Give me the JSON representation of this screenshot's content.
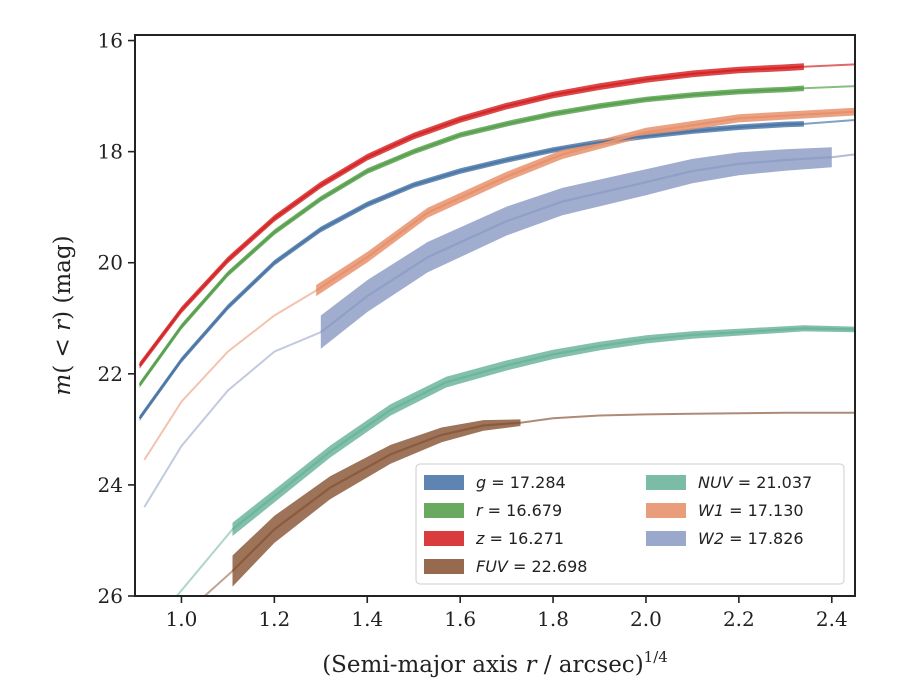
{
  "chart_data": {
    "type": "line",
    "xlabel": "(Semi-major axis r / arcsec)^(1/4)",
    "xlabel_parts": {
      "prefix": "(Semi-major axis ",
      "var": "r",
      "mid": " / arcsec)",
      "sup": "1/4"
    },
    "ylabel": "m(<r) (mag)",
    "ylabel_parts": {
      "var": "m",
      "open": "(",
      "lt": " < ",
      "var2": "r",
      "close": ")",
      "unit": " (mag)"
    },
    "xlim": [
      0.9,
      2.45
    ],
    "ylim": [
      26,
      15.9
    ],
    "y_inverted": true,
    "xticks": [
      1.0,
      1.2,
      1.4,
      1.6,
      1.8,
      2.0,
      2.2,
      2.4
    ],
    "xtick_labels": [
      "1.0",
      "1.2",
      "1.4",
      "1.6",
      "1.8",
      "2.0",
      "2.2",
      "2.4"
    ],
    "yticks": [
      16,
      18,
      20,
      22,
      24,
      26
    ],
    "ytick_labels": [
      "16",
      "18",
      "20",
      "22",
      "24",
      "26"
    ],
    "grid": false,
    "legend_position": "lower-right",
    "series": [
      {
        "name": "g = 17.284",
        "legend_var": "g",
        "legend_value": "17.284",
        "color": "#4c78a8",
        "x": [
          0.91,
          1.0,
          1.1,
          1.2,
          1.3,
          1.4,
          1.5,
          1.6,
          1.7,
          1.8,
          1.9,
          2.0,
          2.1,
          2.2,
          2.3,
          2.34
        ],
        "y": [
          22.8,
          21.75,
          20.8,
          20.0,
          19.4,
          18.95,
          18.6,
          18.35,
          18.15,
          17.97,
          17.83,
          17.72,
          17.63,
          17.56,
          17.51,
          17.5
        ],
        "x_ext": [
          2.34,
          2.45
        ],
        "y_ext": [
          17.5,
          17.43
        ],
        "band": [
          0.05,
          0.05
        ]
      },
      {
        "name": "r = 16.679",
        "legend_var": "r",
        "legend_value": "16.679",
        "color": "#59a14f",
        "x": [
          0.91,
          1.0,
          1.1,
          1.2,
          1.3,
          1.4,
          1.5,
          1.6,
          1.7,
          1.8,
          1.9,
          2.0,
          2.1,
          2.2,
          2.3,
          2.34
        ],
        "y": [
          22.2,
          21.15,
          20.2,
          19.45,
          18.85,
          18.35,
          18.0,
          17.7,
          17.5,
          17.32,
          17.18,
          17.06,
          16.98,
          16.92,
          16.88,
          16.86
        ],
        "x_ext": [
          2.34,
          2.45
        ],
        "y_ext": [
          16.86,
          16.82
        ],
        "band": [
          0.05,
          0.05
        ]
      },
      {
        "name": "z = 16.271",
        "legend_var": "z",
        "legend_value": "16.271",
        "color": "#d62728",
        "x": [
          0.91,
          1.0,
          1.1,
          1.2,
          1.3,
          1.4,
          1.5,
          1.6,
          1.7,
          1.8,
          1.9,
          2.0,
          2.1,
          2.2,
          2.3,
          2.34
        ],
        "y": [
          21.85,
          20.85,
          19.95,
          19.2,
          18.6,
          18.1,
          17.72,
          17.42,
          17.18,
          16.98,
          16.83,
          16.7,
          16.6,
          16.53,
          16.49,
          16.47
        ],
        "x_ext": [
          2.34,
          2.45
        ],
        "y_ext": [
          16.47,
          16.43
        ],
        "band": [
          0.06,
          0.06
        ]
      },
      {
        "name": "FUV = 22.698",
        "legend_var": "FUV",
        "legend_value": "22.698",
        "color": "#8c5a3c",
        "x": [
          1.11,
          1.2,
          1.32,
          1.45,
          1.56,
          1.65,
          1.73
        ],
        "y": [
          25.55,
          24.8,
          24.05,
          23.45,
          23.1,
          22.93,
          22.88
        ],
        "x_ext": [
          1.73,
          1.8,
          1.9,
          2.0,
          2.1,
          2.2,
          2.3,
          2.45
        ],
        "y_ext": [
          22.88,
          22.8,
          22.75,
          22.73,
          22.72,
          22.71,
          22.7,
          22.7
        ],
        "x_ext_lo": [
          1.05,
          1.11
        ],
        "y_ext_lo": [
          26.0,
          25.55
        ],
        "band": [
          0.28,
          0.06
        ]
      },
      {
        "name": "NUV = 21.037",
        "legend_var": "NUV",
        "legend_value": "21.037",
        "color": "#6db59c",
        "x": [
          1.11,
          1.2,
          1.32,
          1.45,
          1.57,
          1.7,
          1.8,
          1.9,
          2.0,
          2.1,
          2.2,
          2.34,
          2.45
        ],
        "y": [
          24.8,
          24.2,
          23.4,
          22.65,
          22.15,
          21.85,
          21.65,
          21.5,
          21.38,
          21.3,
          21.25,
          21.18,
          21.2
        ],
        "x_ext_lo": [
          0.99,
          1.11
        ],
        "y_ext_lo": [
          26.0,
          24.8
        ],
        "band": [
          0.12,
          0.05
        ]
      },
      {
        "name": "W1 = 17.130",
        "legend_var": "W1",
        "legend_value": "17.130",
        "color": "#e8926d",
        "x": [
          1.29,
          1.4,
          1.53,
          1.7,
          1.82,
          2.0,
          2.2,
          2.45
        ],
        "y": [
          20.5,
          19.9,
          19.1,
          18.45,
          18.05,
          17.65,
          17.4,
          17.28
        ],
        "x_ext_lo": [
          0.92,
          1.0,
          1.1,
          1.2,
          1.29
        ],
        "y_ext_lo": [
          23.55,
          22.5,
          21.6,
          20.95,
          20.5
        ],
        "band": [
          0.1,
          0.07
        ]
      },
      {
        "name": "W2 = 17.826",
        "legend_var": "W2",
        "legend_value": "17.826",
        "color": "#8f9fc7",
        "x": [
          1.3,
          1.4,
          1.53,
          1.7,
          1.82,
          2.0,
          2.1,
          2.2,
          2.3,
          2.4
        ],
        "y": [
          21.25,
          20.6,
          19.9,
          19.25,
          18.9,
          18.55,
          18.35,
          18.22,
          18.15,
          18.1
        ],
        "x_ext": [
          2.4,
          2.45
        ],
        "y_ext": [
          18.1,
          18.05
        ],
        "x_ext_lo": [
          0.92,
          1.0,
          1.1,
          1.2,
          1.3
        ],
        "y_ext_lo": [
          24.4,
          23.3,
          22.3,
          21.6,
          21.25
        ],
        "band": [
          0.3,
          0.18
        ]
      }
    ]
  }
}
